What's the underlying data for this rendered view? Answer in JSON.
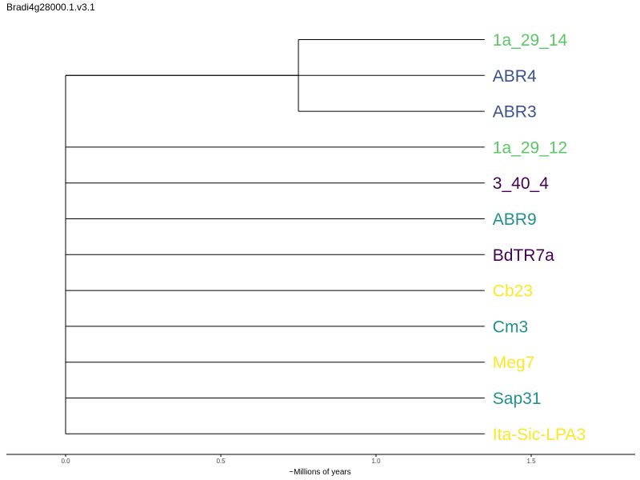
{
  "title": "Bradi4g28000.1.v3.1",
  "xlabel": "~Millions of years",
  "axis_ticks": [
    0.0,
    0.5,
    1.0,
    1.5
  ],
  "tip_depth": 1.35,
  "colors": {
    "green": "#5ac864",
    "blue": "#3b528b",
    "teal": "#21918c",
    "purple": "#440154",
    "yellow": "#fde725",
    "branch": "#000000"
  },
  "internal_nodes": [
    {
      "id": "root",
      "depth": 0.0,
      "parent": null
    },
    {
      "id": "clade-a",
      "depth": 0.75,
      "parent": "root"
    }
  ],
  "leaves": [
    {
      "name": "1a_29_14",
      "color": "#5ac864",
      "parent": "clade-a"
    },
    {
      "name": "ABR4",
      "color": "#3b528b",
      "parent": "root"
    },
    {
      "name": "ABR3",
      "color": "#3b528b",
      "parent": "clade-a"
    },
    {
      "name": "1a_29_12",
      "color": "#5ac864",
      "parent": "root"
    },
    {
      "name": "3_40_4",
      "color": "#440154",
      "parent": "root"
    },
    {
      "name": "ABR9",
      "color": "#21918c",
      "parent": "root"
    },
    {
      "name": "BdTR7a",
      "color": "#440154",
      "parent": "root"
    },
    {
      "name": "Cb23",
      "color": "#fde725",
      "parent": "root"
    },
    {
      "name": "Cm3",
      "color": "#21918c",
      "parent": "root"
    },
    {
      "name": "Meg7",
      "color": "#fde725",
      "parent": "root"
    },
    {
      "name": "Sap31",
      "color": "#21918c",
      "parent": "root"
    },
    {
      "name": "Ita-Sic-LPA3",
      "color": "#fde725",
      "parent": "root"
    }
  ]
}
